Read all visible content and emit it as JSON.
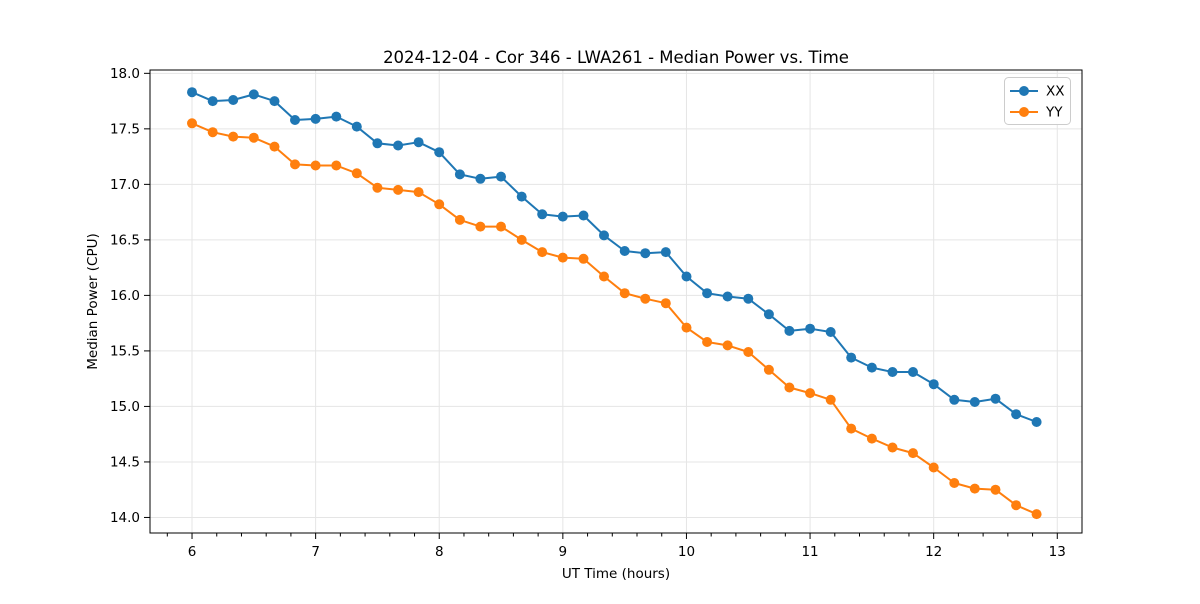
{
  "chart_data": {
    "type": "line",
    "title": "2024-12-04 - Cor 346 - LWA261 - Median Power vs. Time",
    "xlabel": "UT Time (hours)",
    "ylabel": "Median Power (CPU)",
    "xlim": [
      5.66,
      13.2
    ],
    "ylim": [
      13.86,
      18.03
    ],
    "xticks": [
      6,
      7,
      8,
      9,
      10,
      11,
      12,
      13
    ],
    "yticks": [
      14.0,
      14.5,
      15.0,
      15.5,
      16.0,
      16.5,
      17.0,
      17.5,
      18.0
    ],
    "x_minor_tick_step": 0.2,
    "grid": true,
    "legend_position": "upper right",
    "x": [
      6.0,
      6.167,
      6.333,
      6.5,
      6.667,
      6.833,
      7.0,
      7.167,
      7.333,
      7.5,
      7.667,
      7.833,
      8.0,
      8.167,
      8.333,
      8.5,
      8.667,
      8.833,
      9.0,
      9.167,
      9.333,
      9.5,
      9.667,
      9.833,
      10.0,
      10.167,
      10.333,
      10.5,
      10.667,
      10.833,
      11.0,
      11.167,
      11.333,
      11.5,
      11.667,
      11.833,
      12.0,
      12.167,
      12.333,
      12.5,
      12.667,
      12.833
    ],
    "series": [
      {
        "name": "XX",
        "color": "#1f77b4",
        "values": [
          17.83,
          17.75,
          17.76,
          17.81,
          17.75,
          17.58,
          17.59,
          17.61,
          17.52,
          17.37,
          17.35,
          17.38,
          17.29,
          17.09,
          17.05,
          17.07,
          16.89,
          16.73,
          16.71,
          16.72,
          16.54,
          16.4,
          16.38,
          16.39,
          16.17,
          16.02,
          15.99,
          15.97,
          15.83,
          15.68,
          15.7,
          15.67,
          15.44,
          15.35,
          15.31,
          15.31,
          15.2,
          15.06,
          15.04,
          15.07,
          14.93,
          14.86
        ]
      },
      {
        "name": "YY",
        "color": "#ff7f0e",
        "values": [
          17.55,
          17.47,
          17.43,
          17.42,
          17.34,
          17.18,
          17.17,
          17.17,
          17.1,
          16.97,
          16.95,
          16.93,
          16.82,
          16.68,
          16.62,
          16.62,
          16.5,
          16.39,
          16.34,
          16.33,
          16.17,
          16.02,
          15.97,
          15.93,
          15.71,
          15.58,
          15.55,
          15.49,
          15.33,
          15.17,
          15.12,
          15.06,
          14.8,
          14.71,
          14.63,
          14.58,
          14.45,
          14.31,
          14.26,
          14.25,
          14.11,
          14.03
        ]
      }
    ]
  }
}
